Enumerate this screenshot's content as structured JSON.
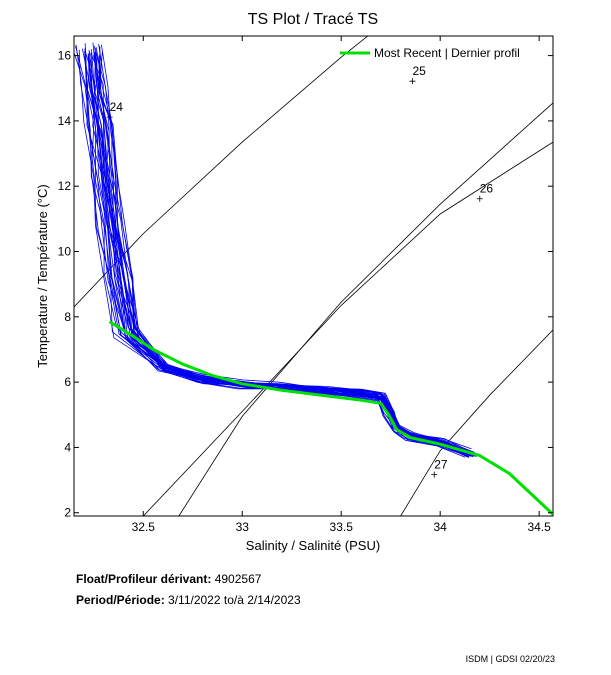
{
  "chart_data": {
    "type": "line",
    "title": "TS Plot / Tracé TS",
    "xlabel": "Salinity / Salinité (PSU)",
    "ylabel": "Temperature / Température (°C)",
    "xlim": [
      32.15,
      34.57
    ],
    "ylim": [
      1.9,
      16.6
    ],
    "xticks": [
      32.5,
      33,
      33.5,
      34,
      34.5
    ],
    "yticks": [
      2,
      4,
      6,
      8,
      10,
      12,
      14,
      16
    ],
    "grid": false,
    "legend": {
      "position": "top-right",
      "entries": [
        "Most Recent | Dernier profil"
      ]
    },
    "density_contours": [
      {
        "label": "24",
        "points": [
          [
            32.15,
            8.3
          ],
          [
            32.5,
            10.55
          ],
          [
            33.0,
            13.35
          ],
          [
            33.5,
            15.95
          ],
          [
            33.82,
            17.5
          ]
        ]
      },
      {
        "label": "25",
        "points": [
          [
            32.68,
            1.9
          ],
          [
            33.0,
            4.95
          ],
          [
            33.5,
            8.45
          ],
          [
            34.0,
            11.45
          ],
          [
            34.57,
            14.55
          ]
        ]
      },
      {
        "label": "26",
        "points": [
          [
            32.5,
            1.9
          ],
          [
            33.0,
            5.1
          ],
          [
            33.5,
            8.35
          ],
          [
            34.0,
            11.15
          ],
          [
            34.57,
            13.35
          ]
        ]
      },
      {
        "label": "27",
        "points": [
          [
            33.8,
            1.9
          ],
          [
            34.0,
            3.9
          ],
          [
            34.25,
            5.6
          ],
          [
            34.57,
            7.6
          ]
        ]
      }
    ],
    "sigma_labels": [
      {
        "text": "24",
        "s": 32.33,
        "t": 14.3
      },
      {
        "text": "25",
        "s": 33.86,
        "t": 15.4
      },
      {
        "text": "26",
        "s": 34.2,
        "t": 11.8
      },
      {
        "text": "27",
        "s": 33.97,
        "t": 3.35
      }
    ],
    "series": [
      {
        "name": "Most Recent | Dernier profil",
        "color": "#00e000",
        "x": [
          32.33,
          32.45,
          32.55,
          32.7,
          32.85,
          33.0,
          33.2,
          33.4,
          33.6,
          33.7,
          33.74,
          33.78,
          33.85,
          34.0,
          34.2,
          34.35,
          34.57
        ],
        "y": [
          7.85,
          7.4,
          7.0,
          6.55,
          6.2,
          5.95,
          5.75,
          5.6,
          5.45,
          5.35,
          5.0,
          4.55,
          4.3,
          4.1,
          3.75,
          3.2,
          1.95
        ]
      }
    ],
    "historical_profiles": {
      "color": "#0000ee",
      "base_x": [
        32.22,
        32.24,
        32.27,
        32.3,
        32.33,
        32.37,
        32.42,
        32.6,
        32.8,
        33.0,
        33.2,
        33.4,
        33.6,
        33.7,
        33.74,
        33.78,
        33.85,
        34.0,
        34.15
      ],
      "base_y": [
        16.2,
        15.0,
        13.8,
        12.3,
        10.8,
        9.2,
        7.5,
        6.45,
        6.1,
        5.95,
        5.85,
        5.75,
        5.65,
        5.55,
        5.1,
        4.6,
        4.35,
        4.15,
        3.8
      ]
    }
  },
  "info": {
    "float_label": "Float/Profileur dérivant:",
    "float_id": "4902567",
    "period_label": "Period/Période:",
    "period_start": "3/11/2022",
    "period_sep": "to/à",
    "period_end": "2/14/2023"
  },
  "footer": "ISDM | GDSI  02/20/23"
}
